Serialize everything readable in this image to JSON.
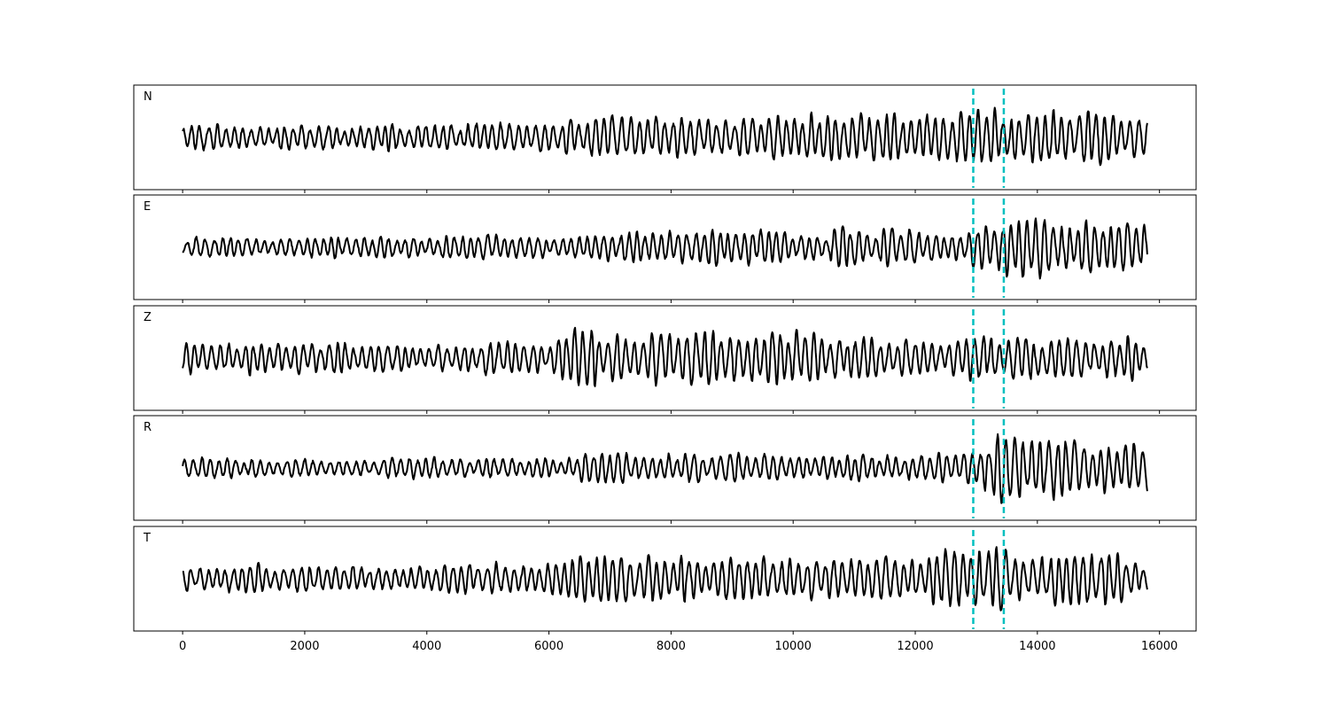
{
  "chart_data": {
    "type": "line",
    "xlim": [
      -800,
      16600
    ],
    "ylim": [
      -1.15,
      1.15
    ],
    "x_ticks": [
      0,
      2000,
      4000,
      6000,
      8000,
      10000,
      12000,
      14000,
      16000
    ],
    "x_range": [
      0,
      15800
    ],
    "grid": false,
    "line_color": "#000000",
    "marker_color": "#00bfbf",
    "markers": [
      12950,
      13450
    ],
    "panels": [
      {
        "label": "N",
        "envelope": [
          [
            0,
            0.25
          ],
          [
            1000,
            0.3
          ],
          [
            2000,
            0.3
          ],
          [
            4000,
            0.32
          ],
          [
            6000,
            0.33
          ],
          [
            6500,
            0.55
          ],
          [
            6800,
            0.5
          ],
          [
            8000,
            0.52
          ],
          [
            9000,
            0.45
          ],
          [
            10000,
            0.5
          ],
          [
            11000,
            0.55
          ],
          [
            12000,
            0.5
          ],
          [
            12600,
            0.62
          ],
          [
            13500,
            0.65
          ],
          [
            14600,
            0.6
          ],
          [
            14900,
            0.7
          ],
          [
            15500,
            0.45
          ],
          [
            15800,
            0.4
          ]
        ]
      },
      {
        "label": "E",
        "envelope": [
          [
            0,
            0.22
          ],
          [
            2000,
            0.22
          ],
          [
            4000,
            0.25
          ],
          [
            5000,
            0.3
          ],
          [
            6000,
            0.25
          ],
          [
            7500,
            0.35
          ],
          [
            9000,
            0.45
          ],
          [
            10500,
            0.4
          ],
          [
            11000,
            0.5
          ],
          [
            12500,
            0.3
          ],
          [
            13000,
            0.45
          ],
          [
            13500,
            0.7
          ],
          [
            14000,
            0.65
          ],
          [
            15000,
            0.6
          ],
          [
            15800,
            0.7
          ]
        ]
      },
      {
        "label": "Z",
        "envelope": [
          [
            0,
            0.35
          ],
          [
            1000,
            0.4
          ],
          [
            2500,
            0.35
          ],
          [
            4500,
            0.3
          ],
          [
            5000,
            0.45
          ],
          [
            6000,
            0.3
          ],
          [
            6600,
            0.85
          ],
          [
            7000,
            0.55
          ],
          [
            9000,
            0.6
          ],
          [
            10000,
            0.6
          ],
          [
            11000,
            0.5
          ],
          [
            12000,
            0.45
          ],
          [
            13000,
            0.5
          ],
          [
            15000,
            0.45
          ],
          [
            15800,
            0.5
          ]
        ]
      },
      {
        "label": "R",
        "envelope": [
          [
            0,
            0.25
          ],
          [
            1000,
            0.2
          ],
          [
            3000,
            0.22
          ],
          [
            5000,
            0.25
          ],
          [
            6000,
            0.2
          ],
          [
            6400,
            0.35
          ],
          [
            7500,
            0.4
          ],
          [
            9000,
            0.35
          ],
          [
            10000,
            0.3
          ],
          [
            12000,
            0.3
          ],
          [
            13000,
            0.4
          ],
          [
            13400,
            0.85
          ],
          [
            14000,
            0.7
          ],
          [
            14600,
            0.75
          ],
          [
            15000,
            0.55
          ],
          [
            15800,
            0.65
          ]
        ]
      },
      {
        "label": "T",
        "envelope": [
          [
            0,
            0.28
          ],
          [
            1000,
            0.35
          ],
          [
            2000,
            0.3
          ],
          [
            4000,
            0.32
          ],
          [
            5000,
            0.35
          ],
          [
            6500,
            0.5
          ],
          [
            7000,
            0.45
          ],
          [
            8000,
            0.55
          ],
          [
            9000,
            0.5
          ],
          [
            10000,
            0.52
          ],
          [
            11000,
            0.55
          ],
          [
            12000,
            0.5
          ],
          [
            12500,
            0.7
          ],
          [
            13500,
            0.7
          ],
          [
            14000,
            0.45
          ],
          [
            14900,
            0.85
          ],
          [
            15500,
            0.5
          ],
          [
            15800,
            0.45
          ]
        ]
      }
    ]
  }
}
